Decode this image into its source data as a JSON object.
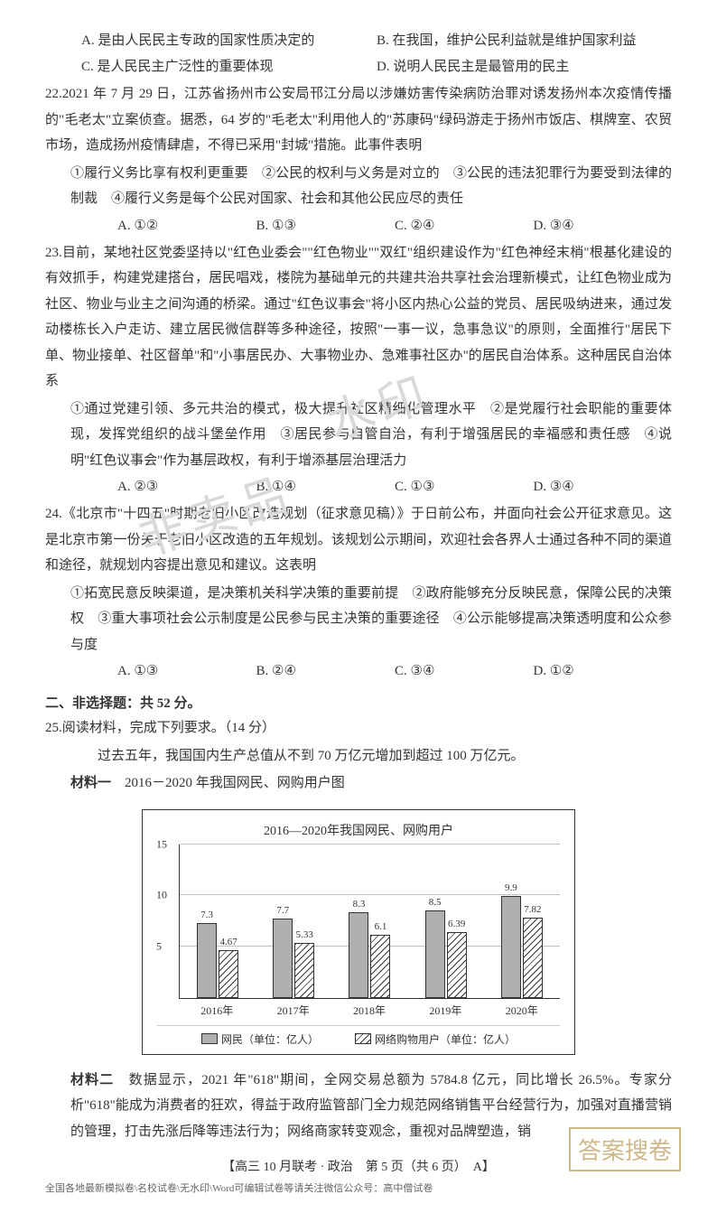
{
  "q21_opts": {
    "A": "A. 是由人民民主专政的国家性质决定的",
    "B": "B. 在我国，维护公民利益就是维护国家利益",
    "C": "C. 是人民民主广泛性的重要体现",
    "D": "D. 说明人民民主是最管用的民主"
  },
  "q22": {
    "num": "22.",
    "text": "2021 年 7 月 29 日，江苏省扬州市公安局邗江分局以涉嫌妨害传染病防治罪对诱发扬州本次疫情传播的\"毛老太\"立案侦查。据悉，64 岁的\"毛老太\"利用他人的\"苏康码\"绿码游走于扬州市饭店、棋牌室、农贸市场，造成扬州疫情肆虐，不得已采用\"封城\"措施。此事件表明",
    "stems": "①履行义务比享有权利更重要　②公民的权利与义务是对立的　③公民的违法犯罪行为要受到法律的制裁　④履行义务是每个公民对国家、社会和其他公民应尽的责任",
    "opts": {
      "A": "A. ①②",
      "B": "B. ①③",
      "C": "C. ②④",
      "D": "D. ③④"
    }
  },
  "q23": {
    "num": "23.",
    "text": "目前，某地社区党委坚持以\"红色业委会\"\"红色物业\"\"双红\"组织建设作为\"红色神经末梢\"根基化建设的有效抓手，构建党建搭台，居民唱戏，楼院为基础单元的共建共治共享社会治理新模式，让红色物业成为社区、物业与业主之间沟通的桥梁。通过\"红色议事会\"将小区内热心公益的党员、居民吸纳进来，通过发动楼栋长入户走访、建立居民微信群等多种途径，按照\"一事一议，急事急议\"的原则，全面推行\"居民下单、物业接单、社区督单\"和\"小事居民办、大事物业办、急难事社区办\"的居民自治体系。这种居民自治体系",
    "stems": "①通过党建引领、多元共治的模式，极大提升社区精细化管理水平　②是党履行社会职能的重要体现，发挥党组织的战斗堡垒作用　③居民参与自管自治，有利于增强居民的幸福感和责任感　④说明\"红色议事会\"作为基层政权，有利于增添基层治理活力",
    "opts": {
      "A": "A. ②③",
      "B": "B. ①④",
      "C": "C. ①③",
      "D": "D. ③④"
    }
  },
  "q24": {
    "num": "24.",
    "text": "《北京市\"十四五\"时期老旧小区改造规划（征求意见稿）》于日前公布，并面向社会公开征求意见。这是北京市第一份关于老旧小区改造的五年规划。该规划公示期间，欢迎社会各界人士通过各种不同的渠道和途径，就规划内容提出意见和建议。这表明",
    "stems": "①拓宽民意反映渠道，是决策机关科学决策的重要前提　②政府能够充分反映民意，保障公民的决策权　③重大事项社会公示制度是公民参与民主决策的重要途径　④公示能够提高决策透明度和公众参与度",
    "opts": {
      "A": "A. ①③",
      "B": "B. ②④",
      "C": "C. ③④",
      "D": "D. ①②"
    }
  },
  "section2": "二、非选择题：共 52 分。",
  "q25": {
    "num": "25.",
    "head": "阅读材料，完成下列要求。（14 分）",
    "intro": "过去五年，我国国内生产总值从不到 70 万亿元增加到超过 100 万亿元。",
    "m1_label": "材料一",
    "m1_text": "　2016－2020 年我国网民、网购用户图",
    "m2_label": "材料二",
    "m2_text": "　数据显示，2021 年\"618\"期间，全网交易总额为 5784.8 亿元，同比增长 26.5%。专家分析\"618\"能成为消费者的狂欢，得益于政府监管部门全力规范网络销售平台经营行为，加强对直播营销的管理，打击先涨后降等违法行为；网络商家转变观念，重视对品牌塑造，销"
  },
  "chart": {
    "title": "2016—2020年我国网民、网购用户",
    "y_max": 15,
    "grid_lines": [
      5,
      10,
      15
    ],
    "y_ticks": [
      {
        "v": 5,
        "label": "5"
      },
      {
        "v": 10,
        "label": "10"
      },
      {
        "v": 15,
        "label": "15"
      }
    ],
    "bar_colors": {
      "solid": "#b0b0b0",
      "border": "#333333"
    },
    "categories": [
      "2016年",
      "2017年",
      "2018年",
      "2019年",
      "2020年"
    ],
    "series": [
      {
        "key": "net",
        "style": "solid",
        "legend": "网民（单位：亿人）"
      },
      {
        "key": "shop",
        "style": "hatch",
        "legend": "网络购物用户（单位：亿人）"
      }
    ],
    "data": [
      {
        "net": 7.3,
        "shop": 4.67
      },
      {
        "net": 7.7,
        "shop": 5.33
      },
      {
        "net": 8.3,
        "shop": 6.1
      },
      {
        "net": 8.5,
        "shop": 6.39
      },
      {
        "net": 9.9,
        "shop": 7.82
      }
    ]
  },
  "footer": "【高三 10 月联考 · 政治　第 5 页（共 6 页）　A】",
  "footnote": "全国各地最新模拟卷\\名校试卷\\无水印\\Word可编辑试卷等请关注微信公众号：高中僧试卷",
  "watermark1": "水印",
  "watermark2": "非卖品",
  "stamp": "答案搜卷"
}
